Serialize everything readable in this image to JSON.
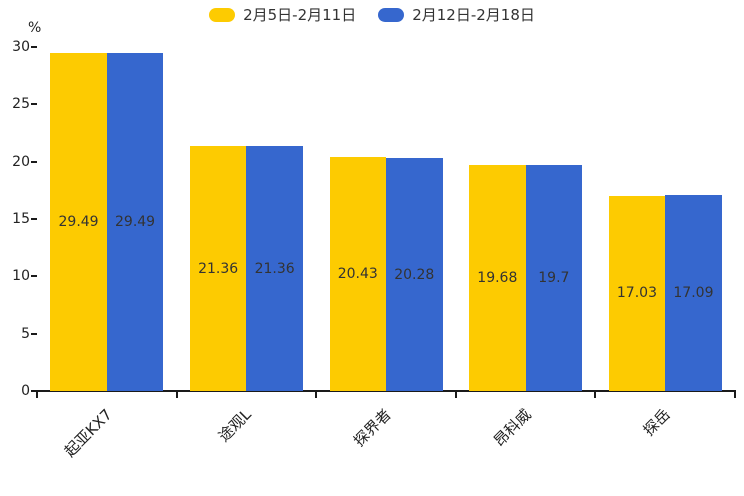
{
  "legend": {
    "items": [
      {
        "label": "2月5日-2月11日"
      },
      {
        "label": "2月12日-2月18日"
      }
    ]
  },
  "axis": {
    "unit_label": "%"
  },
  "chart_data": {
    "type": "bar",
    "title": "",
    "xlabel": "",
    "ylabel": "%",
    "ylim": [
      0,
      30
    ],
    "y_ticks": [
      0,
      5,
      10,
      15,
      20,
      25,
      30
    ],
    "grid": false,
    "legend_position": "top-center",
    "value_labels": "inside-center",
    "x_tick_label_rotation_deg": 45,
    "categories": [
      "起亚KX7",
      "途观L",
      "探界者",
      "昂科威",
      "探岳"
    ],
    "series": [
      {
        "name": "2月5日-2月11日",
        "color": "#FDCB01",
        "values": [
          29.49,
          21.36,
          20.43,
          19.68,
          17.03
        ]
      },
      {
        "name": "2月12日-2月18日",
        "color": "#3667CE",
        "values": [
          29.49,
          21.36,
          20.28,
          19.7,
          17.09
        ]
      }
    ],
    "colors": {
      "series1": "#FDCB01",
      "series2": "#3667CE",
      "axis": "#1a1a1a",
      "label_text": "#333333"
    }
  }
}
